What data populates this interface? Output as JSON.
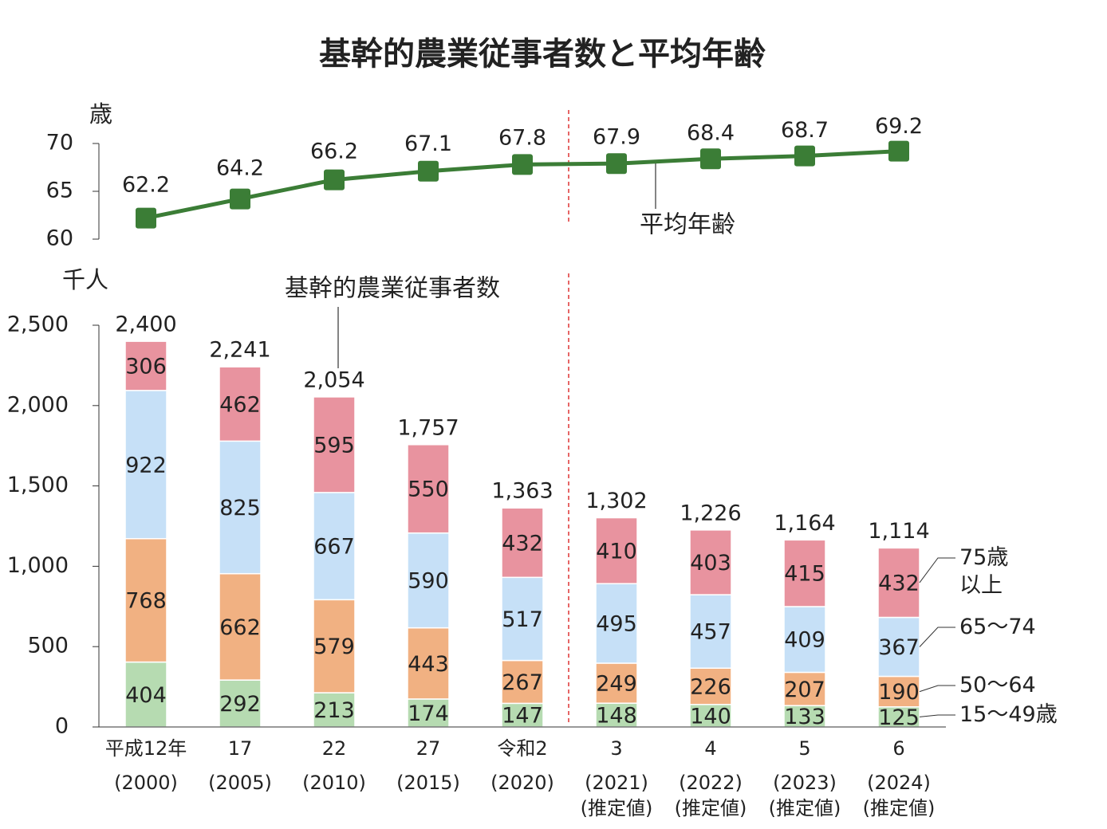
{
  "chart_data": [
    {
      "type": "line",
      "title": "基幹的農業従事者数と平均年齢",
      "y_label": "歳",
      "ylim": [
        60,
        70
      ],
      "yticks": [
        60,
        65,
        70
      ],
      "series": [
        {
          "name": "平均年齢",
          "color": "#3b7d36",
          "values": [
            62.2,
            64.2,
            66.2,
            67.1,
            67.8,
            67.9,
            68.4,
            68.7,
            69.2
          ]
        }
      ]
    },
    {
      "type": "stacked_bar",
      "y_label": "千人",
      "total_name": "基幹的農業従事者数",
      "categories": [
        "平成12年",
        "17",
        "22",
        "27",
        "令和2",
        "3",
        "4",
        "5",
        "6"
      ],
      "category_years": [
        "(2000)",
        "(2005)",
        "(2010)",
        "(2015)",
        "(2020)",
        "(2021)",
        "(2022)",
        "(2023)",
        "(2024)"
      ],
      "category_notes": [
        null,
        null,
        null,
        null,
        null,
        "(推定値)",
        "(推定値)",
        "(推定値)",
        "(推定値)"
      ],
      "ylim": [
        0,
        2500
      ],
      "yticks": [
        0,
        {
          "value": 500,
          "label": "500"
        },
        {
          "value": 1000,
          "label": "1,000"
        },
        {
          "value": 1500,
          "label": "1,500"
        },
        {
          "value": 2000,
          "label": "2,000"
        },
        {
          "value": 2500,
          "label": "2,500"
        }
      ],
      "series": [
        {
          "name": "15～49歳",
          "color": "#b6dbb1",
          "values": [
            404,
            292,
            213,
            174,
            147,
            148,
            140,
            133,
            125
          ]
        },
        {
          "name": "50～64",
          "color": "#f1b182",
          "values": [
            768,
            662,
            579,
            443,
            267,
            249,
            226,
            207,
            190
          ]
        },
        {
          "name": "65～74",
          "color": "#c6e0f7",
          "values": [
            922,
            825,
            667,
            590,
            517,
            495,
            457,
            409,
            367
          ]
        },
        {
          "name": "75歳以上",
          "color": "#e8939f",
          "values": [
            306,
            462,
            595,
            550,
            432,
            410,
            403,
            415,
            432
          ]
        }
      ],
      "totals": [
        2400,
        2241,
        2054,
        1757,
        1363,
        1302,
        1226,
        1164,
        1114
      ],
      "total_value_labels": [
        "2,400",
        "2,241",
        "2,054",
        "1,757",
        "1,363",
        "1,302",
        "1,226",
        "1,164",
        "1,114"
      ]
    }
  ]
}
